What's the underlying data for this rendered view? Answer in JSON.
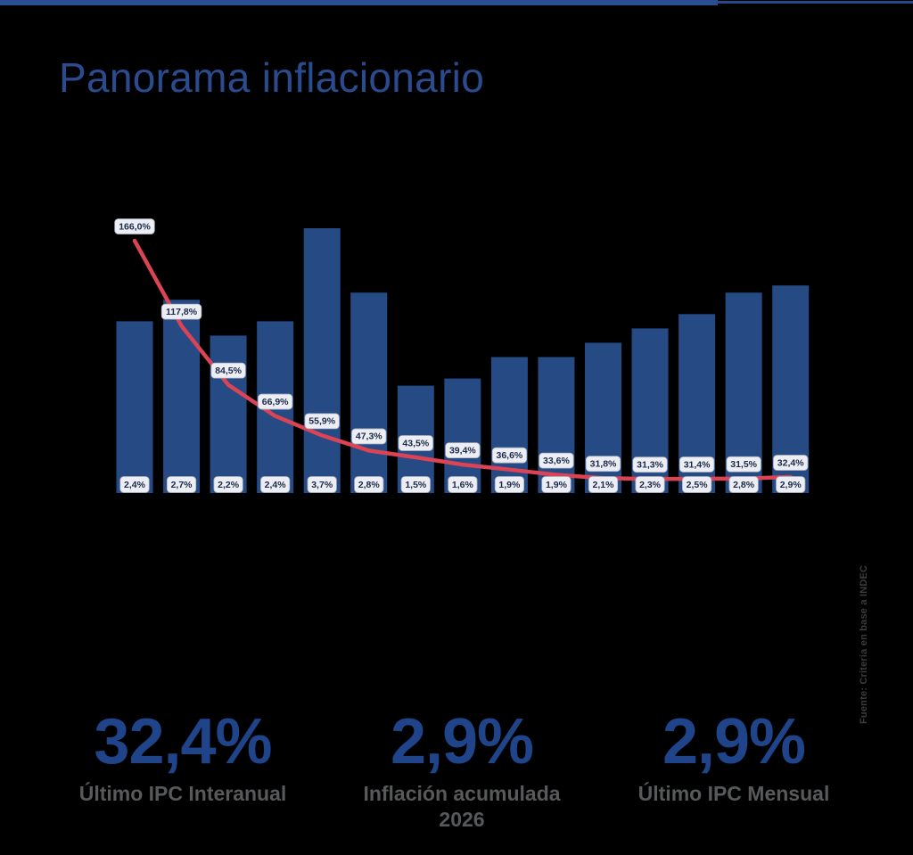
{
  "page": {
    "title": "Panorama inflacionario",
    "source_note": "Fuente: Criteria en base a INDEC"
  },
  "colors": {
    "background": "#000000",
    "top_bar": "#2b4e91",
    "top_bar_thin": "#27498c",
    "title": "#2a4b8d",
    "stat_value": "#1f4489",
    "stat_label": "#58595b",
    "source_text": "#3c3c3c"
  },
  "chart_data": {
    "type": "bar",
    "subtype": "bar-with-line-overlay",
    "x_axis_labels_visible": false,
    "grid": false,
    "legend_position": "none",
    "label_box": {
      "bg": "#eceef4",
      "border": "#a9b0bf",
      "text": "#1b2a4a"
    },
    "series": [
      {
        "name": "IPC mensual",
        "type": "bar",
        "color": "#254a84",
        "values": [
          2.4,
          2.7,
          2.2,
          2.4,
          3.7,
          2.8,
          1.5,
          1.6,
          1.9,
          1.9,
          2.1,
          2.3,
          2.5,
          2.8,
          2.9
        ],
        "labels": [
          "2,4%",
          "2,7%",
          "2,2%",
          "2,4%",
          "3,7%",
          "2,8%",
          "1,5%",
          "1,6%",
          "1,9%",
          "1,9%",
          "2,1%",
          "2,3%",
          "2,5%",
          "2,8%",
          "2,9%"
        ]
      },
      {
        "name": "IPC interanual",
        "type": "line",
        "color": "#dc4355",
        "values": [
          166.0,
          117.8,
          84.5,
          66.9,
          55.9,
          47.3,
          43.5,
          39.4,
          36.6,
          33.6,
          31.8,
          31.3,
          31.4,
          31.5,
          32.4
        ],
        "labels": [
          "166,0%",
          "117,8%",
          "84,5%",
          "66,9%",
          "55,9%",
          "47,3%",
          "43,5%",
          "39,4%",
          "36,6%",
          "33,6%",
          "31,8%",
          "31,3%",
          "31,4%",
          "31,5%",
          "32,4%"
        ]
      }
    ]
  },
  "stats": [
    {
      "value": "32,4%",
      "label_lines": [
        "Último IPC Interanual"
      ]
    },
    {
      "value": "2,9%",
      "label_lines": [
        "Inflación acumulada",
        "2026"
      ]
    },
    {
      "value": "2,9%",
      "label_lines": [
        "Último IPC Mensual"
      ]
    }
  ]
}
